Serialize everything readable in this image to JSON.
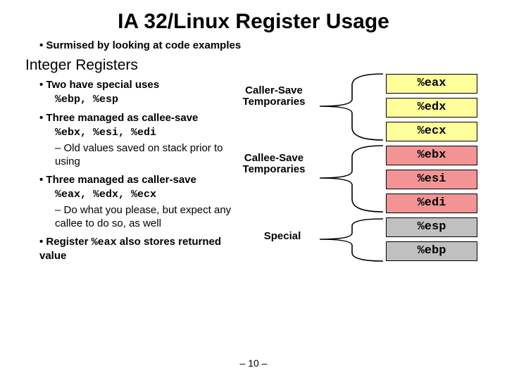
{
  "title": "IA 32/Linux Register Usage",
  "top_bullet": "Surmised by looking at code examples",
  "subtitle": "Integer Registers",
  "bullets": {
    "twoSpecial": "Two have special uses",
    "ebpEsp": "%ebp, %esp",
    "calleeSave": "Three managed as callee-save",
    "ebxEsiEdi": "%ebx, %esi, %edi",
    "oldValues": "Old values saved on stack prior to using",
    "callerSave": "Three managed as caller-save",
    "eaxEdxEcx": "%eax, %edx, %ecx",
    "doWhat": "Do what you please, but expect any callee to do so, as well",
    "regEaxPrefix": "Register ",
    "regEaxReg": "%eax",
    "regEaxSuffix": " also stores returned value"
  },
  "labels": {
    "callerSave": "Caller-Save Temporaries",
    "calleeSave": "Callee-Save Temporaries",
    "special": "Special"
  },
  "registers": [
    {
      "name": "%eax",
      "bg": "#fefe9a"
    },
    {
      "name": "%edx",
      "bg": "#fefe9a"
    },
    {
      "name": "%ecx",
      "bg": "#fefe9a"
    },
    {
      "name": "%ebx",
      "bg": "#f29494"
    },
    {
      "name": "%esi",
      "bg": "#f29494"
    },
    {
      "name": "%edi",
      "bg": "#f29494"
    },
    {
      "name": "%esp",
      "bg": "#c0c0c0"
    },
    {
      "name": "%ebp",
      "bg": "#c0c0c0"
    }
  ],
  "pagenum": "– 10 –",
  "style": {
    "brace_stroke": "#000000",
    "brace_width": 1.6
  }
}
